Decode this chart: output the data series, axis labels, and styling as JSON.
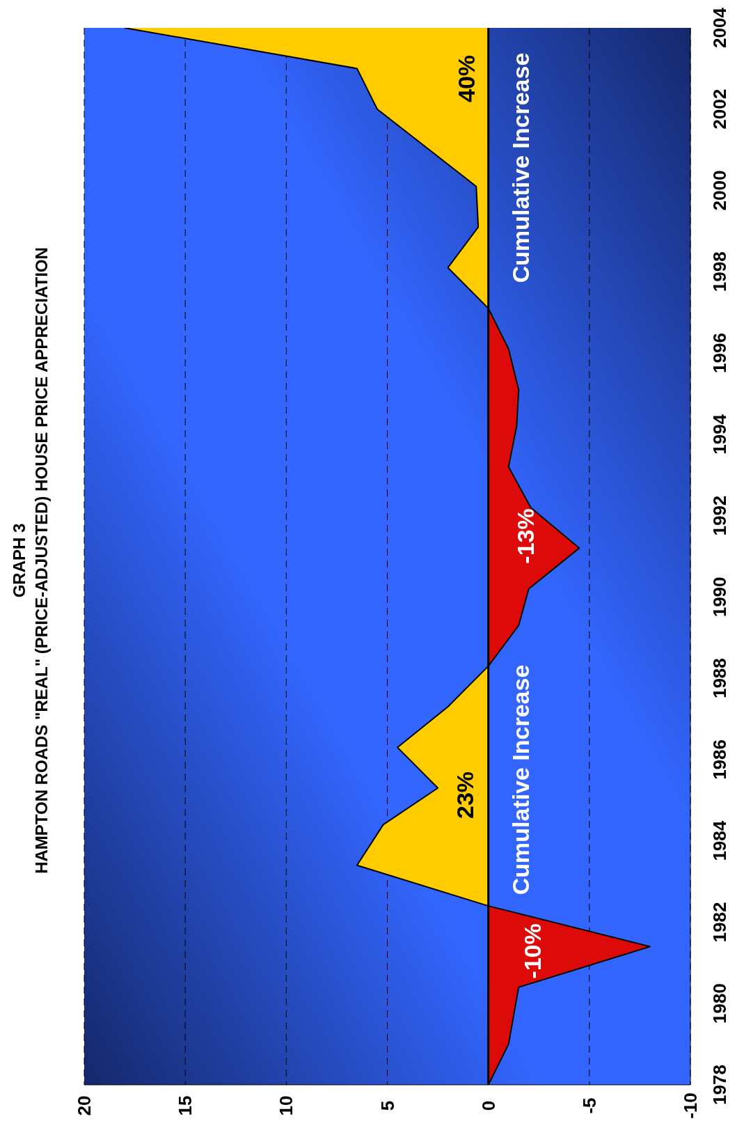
{
  "chart_data": {
    "type": "area",
    "orientation": "horizontal",
    "title": "GRAPH 3",
    "subtitle": "HAMPTON ROADS \"REAL\" (PRICE-ADJUSTED) HOUSE PRICE APPRECIATION",
    "series": [
      {
        "color": "#dd0a0a",
        "x": [
          1978,
          1979,
          1980.4,
          1981.4,
          1982.4
        ],
        "values": [
          0,
          -1,
          -1.5,
          -8,
          0
        ]
      },
      {
        "color": "#ffcc00",
        "x": [
          1982.4,
          1983.4,
          1984.4,
          1985.3,
          1986.3,
          1987.3,
          1988.3
        ],
        "values": [
          0,
          6.5,
          5.2,
          2.5,
          4.5,
          2,
          0
        ]
      },
      {
        "color": "#dd0a0a",
        "x": [
          1988.3,
          1989.3,
          1990.2,
          1991.2,
          1992.2,
          1993.2,
          1994.2,
          1995.1,
          1996.1,
          1997.1
        ],
        "values": [
          0,
          -1.5,
          -2,
          -4.5,
          -2.1,
          -1,
          -1.4,
          -1.5,
          -1,
          0
        ]
      },
      {
        "color": "#ffcc00",
        "x": [
          1997.1,
          1998.1,
          1999.1,
          2000.1,
          2002,
          2003,
          2004
        ],
        "values": [
          0,
          2,
          0.5,
          0.6,
          5.5,
          6.5,
          18
        ]
      }
    ],
    "ylim": [
      1978,
      2004
    ],
    "yticks": [
      1978,
      1980,
      1982,
      1984,
      1986,
      1988,
      1990,
      1992,
      1994,
      1996,
      1998,
      2000,
      2002,
      2004
    ],
    "xlim": [
      20,
      -10
    ],
    "xticks": [
      20,
      15,
      10,
      5,
      0,
      -5,
      -10
    ],
    "grid": "x",
    "ref_lines": [
      {
        "axis": "x",
        "value": 0
      }
    ],
    "annotations": [
      "-10%",
      "23%",
      "Cumulative Increase",
      "-13%",
      "Cumulative Increase",
      "40%"
    ]
  }
}
